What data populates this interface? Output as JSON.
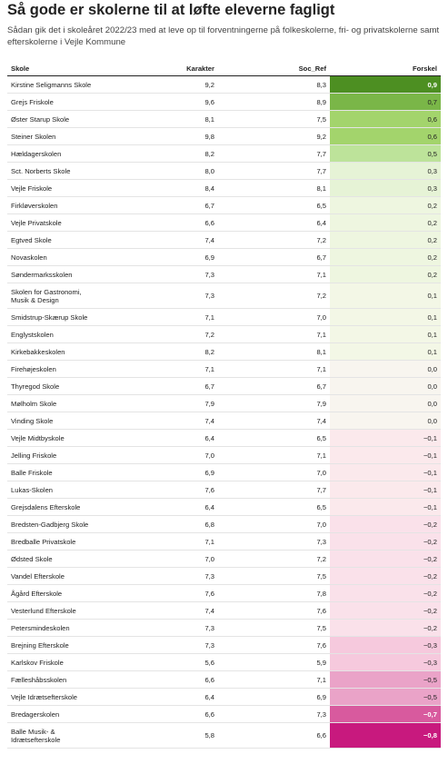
{
  "header": {
    "title": "Så gode er skolerne til at løfte eleverne fagligt",
    "subtitle": "Sådan gik det i skoleåret 2022/23 med at leve op til forventningerne på folkeskolerne, fri- og privatskolerne samt efterskolerne i Vejle Kommune"
  },
  "table": {
    "columns": [
      "Skole",
      "Karakter",
      "Soc_Ref",
      "Forskel"
    ],
    "rows": [
      [
        "Kirstine Seligmanns Skole",
        "9,2",
        "8,3",
        "0,9"
      ],
      [
        "Grejs Friskole",
        "9,6",
        "8,9",
        "0,7"
      ],
      [
        "Øster Starup Skole",
        "8,1",
        "7,5",
        "0,6"
      ],
      [
        "Steiner Skolen",
        "9,8",
        "9,2",
        "0,6"
      ],
      [
        "Hældagerskolen",
        "8,2",
        "7,7",
        "0,5"
      ],
      [
        "Sct. Norberts Skole",
        "8,0",
        "7,7",
        "0,3"
      ],
      [
        "Vejle Friskole",
        "8,4",
        "8,1",
        "0,3"
      ],
      [
        "Firkløverskolen",
        "6,7",
        "6,5",
        "0,2"
      ],
      [
        "Vejle Privatskole",
        "6,6",
        "6,4",
        "0,2"
      ],
      [
        "Egtved Skole",
        "7,4",
        "7,2",
        "0,2"
      ],
      [
        "Novaskolen",
        "6,9",
        "6,7",
        "0,2"
      ],
      [
        "Søndermarksskolen",
        "7,3",
        "7,1",
        "0,2"
      ],
      [
        "Skolen for Gastronomi,\nMusik & Design",
        "7,3",
        "7,2",
        "0,1"
      ],
      [
        "Smidstrup-Skærup Skole",
        "7,1",
        "7,0",
        "0,1"
      ],
      [
        "Englystskolen",
        "7,2",
        "7,1",
        "0,1"
      ],
      [
        "Kirkebakkeskolen",
        "8,2",
        "8,1",
        "0,1"
      ],
      [
        "Firehøjeskolen",
        "7,1",
        "7,1",
        "0,0"
      ],
      [
        "Thyregod Skole",
        "6,7",
        "6,7",
        "0,0"
      ],
      [
        "Mølholm Skole",
        "7,9",
        "7,9",
        "0,0"
      ],
      [
        "Vinding Skole",
        "7,4",
        "7,4",
        "0,0"
      ],
      [
        "Vejle Midtbyskole",
        "6,4",
        "6,5",
        "−0,1"
      ],
      [
        "Jelling Friskole",
        "7,0",
        "7,1",
        "−0,1"
      ],
      [
        "Balle Friskole",
        "6,9",
        "7,0",
        "−0,1"
      ],
      [
        "Lukas-Skolen",
        "7,6",
        "7,7",
        "−0,1"
      ],
      [
        "Grejsdalens Efterskole",
        "6,4",
        "6,5",
        "−0,1"
      ],
      [
        "Bredsten-Gadbjerg Skole",
        "6,8",
        "7,0",
        "−0,2"
      ],
      [
        "Bredballe Privatskole",
        "7,1",
        "7,3",
        "−0,2"
      ],
      [
        "Ødsted Skole",
        "7,0",
        "7,2",
        "−0,2"
      ],
      [
        "Vandel Efterskole",
        "7,3",
        "7,5",
        "−0,2"
      ],
      [
        "Ågård Efterskole",
        "7,6",
        "7,8",
        "−0,2"
      ],
      [
        "Vesterlund Efterskole",
        "7,4",
        "7,6",
        "−0,2"
      ],
      [
        "Petersmindeskolen",
        "7,3",
        "7,5",
        "−0,2"
      ],
      [
        "Brejning Efterskole",
        "7,3",
        "7,6",
        "−0,3"
      ],
      [
        "Karlskov Friskole",
        "5,6",
        "5,9",
        "−0,3"
      ],
      [
        "Fælleshåbsskolen",
        "6,6",
        "7,1",
        "−0,5"
      ],
      [
        "Vejle Idrætsefterskole",
        "6,4",
        "6,9",
        "−0,5"
      ],
      [
        "Bredagerskolen",
        "6,6",
        "7,3",
        "−0,7"
      ],
      [
        "Balle Musik- &\nIdrætsefterskole",
        "5,8",
        "6,6",
        "−0,8"
      ]
    ],
    "forskel_colors": [
      "#4d8f22",
      "#7ab648",
      "#a3d46c",
      "#a3d46c",
      "#bde39a",
      "#e6f3d6",
      "#e6f3d6",
      "#eef6e0",
      "#eef6e0",
      "#eef6e0",
      "#eef6e0",
      "#eef6e0",
      "#f3f7e6",
      "#f3f7e6",
      "#f3f7e6",
      "#f3f7e6",
      "#f8f5ef",
      "#f8f5ef",
      "#f8f5ef",
      "#f8f5ef",
      "#fbe9ec",
      "#fbe9ec",
      "#fbe9ec",
      "#fbe9ec",
      "#fbe9ec",
      "#fae1ea",
      "#fae1ea",
      "#fae1ea",
      "#fae1ea",
      "#fae1ea",
      "#fae1ea",
      "#fae1ea",
      "#f6c9dd",
      "#f6c9dd",
      "#eaa3c8",
      "#eaa3c8",
      "#d85a9e",
      "#c8197e"
    ]
  }
}
